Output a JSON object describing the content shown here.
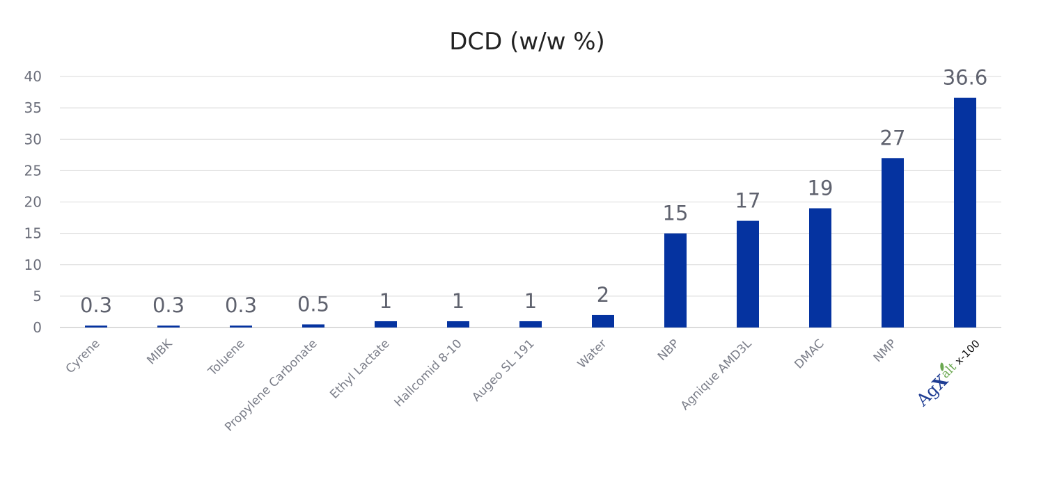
{
  "chart_data": {
    "type": "bar",
    "title": "DCD (w/w %)",
    "xlabel": "",
    "ylabel": "",
    "ylim": [
      0,
      40
    ],
    "yticks": [
      "0",
      "5",
      "10",
      "15",
      "20",
      "25",
      "30",
      "35",
      "40"
    ],
    "grid": true,
    "legend": "none",
    "bar_color": "#0533a0",
    "categories": [
      "Cyrene",
      "MIBK",
      "Toluene",
      "Propylene Carbonate",
      "Ethyl Lactate",
      "Hallcomid 8-10",
      "Augeo SL 191",
      "Water",
      "NBP",
      "Agnique AMD3L",
      "DMAC",
      "NMP",
      "AgXalt x-100"
    ],
    "values": [
      0.3,
      0.3,
      0.3,
      0.5,
      1,
      1,
      1,
      2,
      15,
      17,
      19,
      27,
      36.6
    ],
    "data_labels": [
      "0.3",
      "0.3",
      "0.3",
      "0.5",
      "1",
      "1",
      "1",
      "2",
      "15",
      "17",
      "19",
      "27",
      "36.6"
    ],
    "last_category_logo": {
      "name": "agxalt-logo",
      "ag_text": "Ag",
      "x_text": "X",
      "alt_text": "alt",
      "suffix_text": "x-100",
      "ag_color": "#1f3d93",
      "alt_color": "#6aa84f"
    }
  }
}
